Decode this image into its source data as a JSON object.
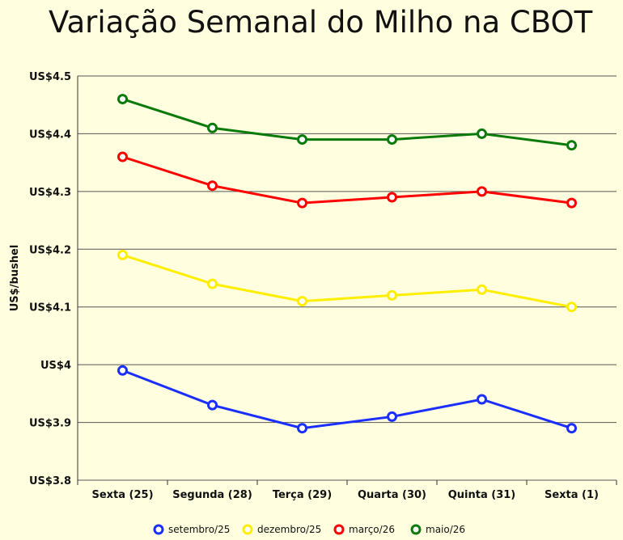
{
  "chart_data": {
    "type": "line",
    "title": "Variação Semanal do Milho na CBOT",
    "xlabel": "",
    "ylabel": "US$/bushel",
    "categories": [
      "Sexta (25)",
      "Segunda (28)",
      "Terça (29)",
      "Quarta (30)",
      "Quinta (31)",
      "Sexta (1)"
    ],
    "ylim": [
      3.8,
      4.5
    ],
    "yticks": [
      3.8,
      3.9,
      4.0,
      4.1,
      4.2,
      4.3,
      4.4,
      4.5
    ],
    "ytick_labels": [
      "US$3.8",
      "US$3.9",
      "US$4",
      "US$4.1",
      "US$4.2",
      "US$4.3",
      "US$4.4",
      "US$4.5"
    ],
    "grid": true,
    "legend_position": "bottom",
    "series": [
      {
        "name": "setembro/25",
        "color": "#1a2eff",
        "values": [
          3.99,
          3.93,
          3.89,
          3.91,
          3.94,
          3.89
        ]
      },
      {
        "name": "dezembro/25",
        "color": "#ffee00",
        "values": [
          4.19,
          4.14,
          4.11,
          4.12,
          4.13,
          4.1
        ]
      },
      {
        "name": "março/26",
        "color": "#ff0000",
        "values": [
          4.36,
          4.31,
          4.28,
          4.29,
          4.3,
          4.28
        ]
      },
      {
        "name": "maio/26",
        "color": "#0a7a0a",
        "values": [
          4.46,
          4.41,
          4.39,
          4.39,
          4.4,
          4.38
        ]
      }
    ]
  }
}
